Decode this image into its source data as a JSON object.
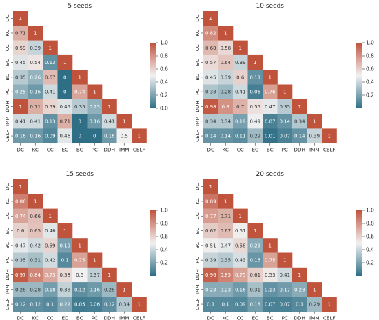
{
  "labels": [
    "DC",
    "KC",
    "CC",
    "EC",
    "BC",
    "PC",
    "DDH",
    "IMM",
    "CELF"
  ],
  "colors": {
    "low": "#2f6f86",
    "mid": "#f1f1f1",
    "high": "#c0533c"
  },
  "chart_data": [
    {
      "type": "heatmap",
      "title": "5 seeds",
      "vmin": 0,
      "vmax": 1,
      "colorbar_ticks": [
        "0.0",
        "0.2",
        "0.4",
        "0.6",
        "0.8",
        "1.0"
      ],
      "values": [
        [
          "1"
        ],
        [
          "0.71",
          "1"
        ],
        [
          "0.59",
          "0.39",
          "1"
        ],
        [
          "0.45",
          "0.54",
          "0.13",
          "1"
        ],
        [
          "0.35",
          "0.26",
          "0.67",
          "0",
          "1"
        ],
        [
          "0.25",
          "0.16",
          "0.41",
          "0",
          "0.74",
          "1"
        ],
        [
          "1",
          "0.71",
          "0.59",
          "0.45",
          "0.35",
          "0.25",
          "1"
        ],
        [
          "0.41",
          "0.41",
          "0.13",
          "0.71",
          "0",
          "0.16",
          "0.41",
          "1"
        ],
        [
          "0.16",
          "0.16",
          "0.09",
          "0.46",
          "0",
          "0",
          "0.16",
          "0.5",
          "1"
        ]
      ]
    },
    {
      "type": "heatmap",
      "title": "10 seeds",
      "vmin": 0,
      "vmax": 1,
      "colorbar_ticks": [
        "0.2",
        "0.4",
        "0.6",
        "0.8",
        "1.0"
      ],
      "values": [
        [
          "1"
        ],
        [
          "0.82",
          "1"
        ],
        [
          "0.68",
          "0.58",
          "1"
        ],
        [
          "0.57",
          "0.64",
          "0.39",
          "1"
        ],
        [
          "0.45",
          "0.39",
          "0.6",
          "0.13",
          "1"
        ],
        [
          "0.33",
          "0.28",
          "0.41",
          "0.06",
          "0.76",
          "1"
        ],
        [
          "0.98",
          "0.8",
          "0.7",
          "0.55",
          "0.47",
          "0.35",
          "1"
        ],
        [
          "0.34",
          "0.34",
          "0.19",
          "0.49",
          "0.07",
          "0.14",
          "0.34",
          "1"
        ],
        [
          "0.14",
          "0.14",
          "0.11",
          "0.29",
          "0.01",
          "0.07",
          "0.14",
          "0.39",
          "1"
        ]
      ]
    },
    {
      "type": "heatmap",
      "title": "15 seeds",
      "vmin": 0,
      "vmax": 1,
      "colorbar_ticks": [
        "0.2",
        "0.4",
        "0.6",
        "0.8",
        "1.0"
      ],
      "values": [
        [
          "1"
        ],
        [
          "0.86",
          "1"
        ],
        [
          "0.74",
          "0.66",
          "1"
        ],
        [
          "0.6",
          "0.65",
          "0.46",
          "1"
        ],
        [
          "0.47",
          "0.42",
          "0.59",
          "0.19",
          "1"
        ],
        [
          "0.35",
          "0.31",
          "0.42",
          "0.1",
          "0.75",
          "1"
        ],
        [
          "0.97",
          "0.84",
          "0.73",
          "0.58",
          "0.5",
          "0.37",
          "1"
        ],
        [
          "0.28",
          "0.28",
          "0.18",
          "0.38",
          "0.12",
          "0.16",
          "0.28",
          "1"
        ],
        [
          "0.12",
          "0.12",
          "0.1",
          "0.22",
          "0.05",
          "0.06",
          "0.12",
          "0.34",
          "1"
        ]
      ]
    },
    {
      "type": "heatmap",
      "title": "20 seeds",
      "vmin": 0,
      "vmax": 1,
      "colorbar_ticks": [
        "0.2",
        "0.4",
        "0.6",
        "0.8",
        "1.0"
      ],
      "values": [
        [
          "1"
        ],
        [
          "0.89",
          "1"
        ],
        [
          "0.77",
          "0.71",
          "1"
        ],
        [
          "0.62",
          "0.67",
          "0.51",
          "1"
        ],
        [
          "0.51",
          "0.47",
          "0.58",
          "0.23",
          "1"
        ],
        [
          "0.39",
          "0.35",
          "0.43",
          "0.15",
          "0.75",
          "1"
        ],
        [
          "0.96",
          "0.85",
          "0.75",
          "0.61",
          "0.53",
          "0.41",
          "1"
        ],
        [
          "0.23",
          "0.23",
          "0.16",
          "0.31",
          "0.13",
          "0.17",
          "0.23",
          "1"
        ],
        [
          "0.1",
          "0.1",
          "0.09",
          "0.18",
          "0.07",
          "0.07",
          "0.1",
          "0.29",
          "1"
        ]
      ]
    }
  ]
}
